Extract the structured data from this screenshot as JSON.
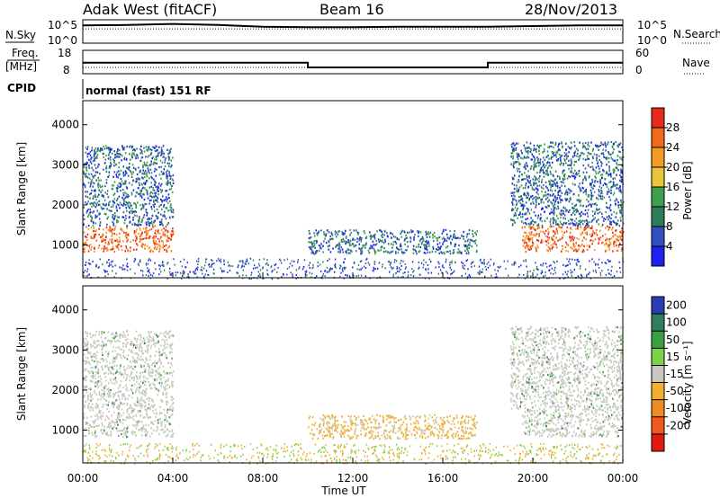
{
  "header": {
    "station": "Adak West (fitACF)",
    "beam": "Beam 16",
    "date": "28/Nov/2013"
  },
  "panels": {
    "nsky": {
      "label": "N.Sky",
      "right_label": "N.Search",
      "left_ticks": [
        "10^5",
        "10^0"
      ],
      "right_ticks": [
        "10^5",
        "10^0"
      ]
    },
    "freq": {
      "label_line1": "Freq.",
      "label_line2": "[MHz]",
      "left_ticks": [
        "18",
        "8"
      ],
      "right_ticks": [
        "60",
        "0"
      ],
      "right_label": "Nave"
    },
    "cpid": {
      "label": "CPID",
      "value": "normal (fast) 151 RF"
    }
  },
  "axes": {
    "ylabel": "Slant Range [km]",
    "xlabel": "Time UT",
    "yticks": [
      "1000",
      "2000",
      "3000",
      "4000"
    ],
    "xticks": [
      "00:00",
      "04:00",
      "08:00",
      "12:00",
      "16:00",
      "20:00",
      "00:00"
    ]
  },
  "colorbars": {
    "power": {
      "label": "Power [dB]",
      "ticks": [
        "4",
        "8",
        "12",
        "16",
        "20",
        "24",
        "28"
      ],
      "colors": [
        "#1e22ee",
        "#3050c0",
        "#2e7d5a",
        "#3ea04a",
        "#e8c43a",
        "#f59a22",
        "#f06a1a",
        "#e82a1a"
      ]
    },
    "velocity": {
      "label": "Velocity [m s⁻¹]",
      "ticks": [
        "200",
        "100",
        "50",
        "15",
        "-15",
        "-50",
        "-100",
        "-200"
      ],
      "colors": [
        "#2b3cb0",
        "#2f7e5e",
        "#3aa040",
        "#7cd24a",
        "#c8c8c0",
        "#f0b030",
        "#f08a20",
        "#f05a1a",
        "#e01a10"
      ]
    }
  },
  "chart_data": [
    {
      "type": "line",
      "title": "N.Sky",
      "x_range_hours": [
        0,
        24
      ],
      "series": [
        {
          "name": "N.Sky",
          "x": [
            0,
            2,
            4,
            6,
            8,
            10,
            12,
            14,
            16,
            18,
            20,
            22,
            24
          ],
          "values": [
            0.78,
            0.8,
            0.85,
            0.8,
            0.72,
            0.7,
            0.7,
            0.72,
            0.72,
            0.72,
            0.75,
            0.78,
            0.78
          ]
        },
        {
          "name": "N.Search",
          "x": [
            0,
            24
          ],
          "values": [
            0.62,
            0.62
          ]
        }
      ]
    },
    {
      "type": "line",
      "title": "Freq.",
      "ylim": [
        8,
        18
      ],
      "x_range_hours": [
        0,
        24
      ],
      "series": [
        {
          "name": "Freq.",
          "x": [
            0,
            10,
            10,
            18,
            18,
            24
          ],
          "values": [
            12.7,
            12.7,
            10.5,
            10.5,
            12.7,
            12.7
          ]
        },
        {
          "name": "Nave",
          "x": [
            0,
            24
          ],
          "values": [
            10.5,
            10.5
          ]
        }
      ]
    },
    {
      "type": "heatmap",
      "title": "Power",
      "xlabel": "Time UT",
      "ylabel": "Slant Range [km]",
      "xlim_hours": [
        0,
        24
      ],
      "ylim": [
        180,
        4600
      ],
      "regions": [
        {
          "t0": 0.0,
          "t1": 4.0,
          "r0": 850,
          "r1": 1500,
          "level": "high"
        },
        {
          "t0": 0.0,
          "t1": 4.0,
          "r0": 1500,
          "r1": 3500,
          "level": "low"
        },
        {
          "t0": 10.0,
          "t1": 17.5,
          "r0": 800,
          "r1": 1400,
          "level": "low"
        },
        {
          "t0": 19.5,
          "t1": 24.0,
          "r0": 850,
          "r1": 1500,
          "level": "high"
        },
        {
          "t0": 19.0,
          "t1": 24.0,
          "r0": 1500,
          "r1": 3600,
          "level": "low"
        }
      ]
    },
    {
      "type": "heatmap",
      "title": "Velocity",
      "xlabel": "Time UT",
      "ylabel": "Slant Range [km]",
      "xlim_hours": [
        0,
        24
      ],
      "ylim": [
        180,
        4600
      ],
      "regions": [
        {
          "t0": 0.0,
          "t1": 4.0,
          "r0": 850,
          "r1": 1600,
          "level": "near-zero"
        },
        {
          "t0": 0.0,
          "t1": 4.0,
          "r0": 1600,
          "r1": 3500,
          "level": "near-zero"
        },
        {
          "t0": 10.0,
          "t1": 17.5,
          "r0": 800,
          "r1": 1400,
          "level": "negative"
        },
        {
          "t0": 19.5,
          "t1": 24.0,
          "r0": 850,
          "r1": 1500,
          "level": "near-zero"
        },
        {
          "t0": 19.0,
          "t1": 24.0,
          "r0": 1500,
          "r1": 3600,
          "level": "near-zero"
        }
      ]
    }
  ]
}
